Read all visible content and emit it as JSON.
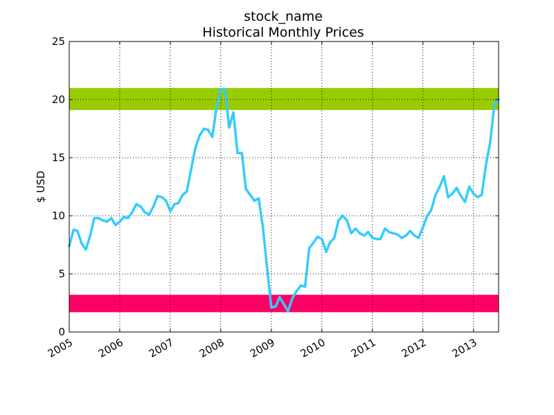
{
  "chart_data": {
    "type": "line",
    "title": "stock_name",
    "subtitle": "Historical Monthly Prices",
    "xlabel": "",
    "ylabel": "$ USD",
    "x_type": "date",
    "xlim": [
      "2005-01-01",
      "2013-07-01"
    ],
    "ylim": [
      0,
      25
    ],
    "grid": true,
    "y_ticks": [
      0,
      5,
      10,
      15,
      20,
      25
    ],
    "x_ticks": [
      {
        "date": "2005-01-01",
        "label": "2005"
      },
      {
        "date": "2006-01-01",
        "label": "2006"
      },
      {
        "date": "2007-01-01",
        "label": "2007"
      },
      {
        "date": "2008-01-01",
        "label": "2008"
      },
      {
        "date": "2009-01-01",
        "label": "2009"
      },
      {
        "date": "2010-01-01",
        "label": "2010"
      },
      {
        "date": "2011-01-01",
        "label": "2011"
      },
      {
        "date": "2012-01-01",
        "label": "2012"
      },
      {
        "date": "2013-01-01",
        "label": "2013"
      }
    ],
    "bands": [
      {
        "y_from": 19.1,
        "y_to": 21.0,
        "color": "#99cc00"
      },
      {
        "y_from": 1.7,
        "y_to": 3.2,
        "color": "#ff0066"
      }
    ],
    "series": [
      {
        "color": "#33ccff",
        "points": [
          [
            "2005-01-01",
            7.4
          ],
          [
            "2005-02-01",
            8.8
          ],
          [
            "2005-03-01",
            8.7
          ],
          [
            "2005-04-01",
            7.6
          ],
          [
            "2005-05-01",
            7.1
          ],
          [
            "2005-06-01",
            8.3
          ],
          [
            "2005-07-01",
            9.8
          ],
          [
            "2005-08-01",
            9.8
          ],
          [
            "2005-09-01",
            9.6
          ],
          [
            "2005-10-01",
            9.5
          ],
          [
            "2005-11-01",
            9.8
          ],
          [
            "2005-12-01",
            9.2
          ],
          [
            "2006-01-01",
            9.5
          ],
          [
            "2006-02-01",
            9.9
          ],
          [
            "2006-03-01",
            9.8
          ],
          [
            "2006-04-01",
            10.3
          ],
          [
            "2006-05-01",
            11.0
          ],
          [
            "2006-06-01",
            10.8
          ],
          [
            "2006-07-01",
            10.3
          ],
          [
            "2006-08-01",
            10.1
          ],
          [
            "2006-09-01",
            10.8
          ],
          [
            "2006-10-01",
            11.7
          ],
          [
            "2006-11-01",
            11.6
          ],
          [
            "2006-12-01",
            11.3
          ],
          [
            "2007-01-01",
            10.4
          ],
          [
            "2007-02-01",
            11.0
          ],
          [
            "2007-03-01",
            11.1
          ],
          [
            "2007-04-01",
            11.8
          ],
          [
            "2007-05-01",
            12.1
          ],
          [
            "2007-06-01",
            14.0
          ],
          [
            "2007-07-01",
            15.8
          ],
          [
            "2007-08-01",
            16.9
          ],
          [
            "2007-09-01",
            17.5
          ],
          [
            "2007-10-01",
            17.4
          ],
          [
            "2007-11-01",
            16.8
          ],
          [
            "2007-12-01",
            19.3
          ],
          [
            "2008-01-01",
            20.9
          ],
          [
            "2008-02-01",
            20.9
          ],
          [
            "2008-03-01",
            17.6
          ],
          [
            "2008-04-01",
            18.9
          ],
          [
            "2008-05-01",
            15.4
          ],
          [
            "2008-06-01",
            15.4
          ],
          [
            "2008-07-01",
            12.3
          ],
          [
            "2008-08-01",
            11.8
          ],
          [
            "2008-09-01",
            11.3
          ],
          [
            "2008-10-01",
            11.5
          ],
          [
            "2008-11-01",
            9.0
          ],
          [
            "2008-12-01",
            5.5
          ],
          [
            "2009-01-01",
            2.1
          ],
          [
            "2009-02-01",
            2.2
          ],
          [
            "2009-03-01",
            3.0
          ],
          [
            "2009-04-01",
            2.4
          ],
          [
            "2009-05-01",
            1.8
          ],
          [
            "2009-06-01",
            2.9
          ],
          [
            "2009-07-01",
            3.5
          ],
          [
            "2009-08-01",
            4.0
          ],
          [
            "2009-09-01",
            3.9
          ],
          [
            "2009-10-01",
            7.2
          ],
          [
            "2009-11-01",
            7.7
          ],
          [
            "2009-12-01",
            8.2
          ],
          [
            "2010-01-01",
            8.0
          ],
          [
            "2010-02-01",
            6.9
          ],
          [
            "2010-03-01",
            7.7
          ],
          [
            "2010-04-01",
            8.1
          ],
          [
            "2010-05-01",
            9.6
          ],
          [
            "2010-06-01",
            10.0
          ],
          [
            "2010-07-01",
            9.6
          ],
          [
            "2010-08-01",
            8.5
          ],
          [
            "2010-09-01",
            8.9
          ],
          [
            "2010-10-01",
            8.5
          ],
          [
            "2010-11-01",
            8.3
          ],
          [
            "2010-12-01",
            8.6
          ],
          [
            "2011-01-01",
            8.1
          ],
          [
            "2011-02-01",
            8.0
          ],
          [
            "2011-03-01",
            8.0
          ],
          [
            "2011-04-01",
            8.9
          ],
          [
            "2011-05-01",
            8.6
          ],
          [
            "2011-06-01",
            8.5
          ],
          [
            "2011-07-01",
            8.4
          ],
          [
            "2011-08-01",
            8.1
          ],
          [
            "2011-09-01",
            8.3
          ],
          [
            "2011-10-01",
            8.7
          ],
          [
            "2011-11-01",
            8.3
          ],
          [
            "2011-12-01",
            8.1
          ],
          [
            "2012-01-01",
            9.0
          ],
          [
            "2012-02-01",
            10.0
          ],
          [
            "2012-03-01",
            10.5
          ],
          [
            "2012-04-01",
            11.8
          ],
          [
            "2012-05-01",
            12.5
          ],
          [
            "2012-06-01",
            13.4
          ],
          [
            "2012-07-01",
            11.6
          ],
          [
            "2012-08-01",
            11.9
          ],
          [
            "2012-09-01",
            12.4
          ],
          [
            "2012-10-01",
            11.7
          ],
          [
            "2012-11-01",
            11.2
          ],
          [
            "2012-12-01",
            12.5
          ],
          [
            "2013-01-01",
            11.9
          ],
          [
            "2013-02-01",
            11.6
          ],
          [
            "2013-03-01",
            11.8
          ],
          [
            "2013-04-01",
            14.4
          ],
          [
            "2013-05-01",
            16.3
          ],
          [
            "2013-06-01",
            19.6
          ],
          [
            "2013-07-01",
            20.0
          ]
        ]
      }
    ]
  }
}
